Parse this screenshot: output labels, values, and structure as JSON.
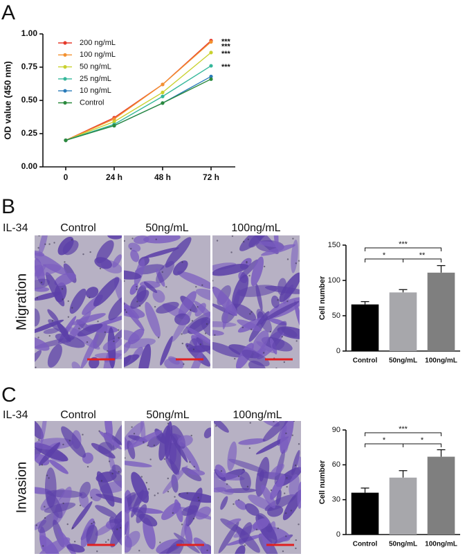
{
  "panels": [
    {
      "label": "A"
    },
    {
      "label": "B",
      "treatment": "IL-34",
      "row_label": "Migration",
      "columns": [
        "Control",
        "50ng/mL",
        "100ng/mL"
      ]
    },
    {
      "label": "C",
      "treatment": "IL-34",
      "row_label": "Invasion",
      "columns": [
        "Control",
        "50ng/mL",
        "100ng/mL"
      ]
    }
  ],
  "chart_data": [
    {
      "type": "line",
      "ylabel": "OD value (450 nm)",
      "categories": [
        "0",
        "24 h",
        "48 h",
        "72 h"
      ],
      "ylim": [
        0,
        1
      ],
      "yticks": [
        {
          "value": 0,
          "label": "0.00"
        },
        0.25,
        {
          "value": 0.5,
          "label": "0.50"
        },
        0.75,
        {
          "value": 1,
          "label": "1.00"
        }
      ],
      "series": [
        {
          "name": "200 ng/mL",
          "color": "#e53a2b",
          "values": [
            0.2,
            0.37,
            0.62,
            0.95
          ],
          "annotation": "***"
        },
        {
          "name": "100 ng/mL",
          "color": "#f39130",
          "values": [
            0.2,
            0.36,
            0.62,
            0.94
          ],
          "annotation": "***"
        },
        {
          "name": "50 ng/mL",
          "color": "#c9d12e",
          "values": [
            0.2,
            0.34,
            0.56,
            0.86
          ],
          "annotation": "***"
        },
        {
          "name": "25 ng/mL",
          "color": "#35b79a",
          "values": [
            0.2,
            0.32,
            0.53,
            0.76
          ],
          "annotation": "***"
        },
        {
          "name": "10 ng/mL",
          "color": "#2a7bb9",
          "values": [
            0.2,
            0.31,
            0.48,
            0.68
          ]
        },
        {
          "name": "Control",
          "color": "#2b8a3e",
          "values": [
            0.2,
            0.31,
            0.48,
            0.66
          ]
        }
      ]
    },
    {
      "type": "bar",
      "ylabel": "Cell number",
      "categories": [
        "Control",
        "50ng/mL",
        "100ng/mL"
      ],
      "values": [
        66,
        83,
        111
      ],
      "errors": [
        4,
        4,
        10
      ],
      "colors": [
        "#000000",
        "#a7a7ab",
        "#7f7f7f"
      ],
      "ylim": [
        0,
        150
      ],
      "yticks": [
        0,
        50,
        100,
        150
      ],
      "comparisons": [
        {
          "groups": [
            "Control",
            "100ng/mL"
          ],
          "label": "***"
        },
        {
          "groups": [
            "Control",
            "50ng/mL"
          ],
          "label": "*"
        },
        {
          "groups": [
            "50ng/mL",
            "100ng/mL"
          ],
          "label": "**"
        }
      ]
    },
    {
      "type": "bar",
      "ylabel": "Cell number",
      "categories": [
        "Control",
        "50ng/mL",
        "100ng/mL"
      ],
      "values": [
        36,
        49,
        67
      ],
      "errors": [
        4,
        6,
        6
      ],
      "colors": [
        "#000000",
        "#a7a7ab",
        "#7f7f7f"
      ],
      "ylim": [
        0,
        90
      ],
      "yticks": [
        0,
        30,
        60,
        90
      ],
      "comparisons": [
        {
          "groups": [
            "Control",
            "100ng/mL"
          ],
          "label": "***"
        },
        {
          "groups": [
            "Control",
            "50ng/mL"
          ],
          "label": "*"
        },
        {
          "groups": [
            "50ng/mL",
            "100ng/mL"
          ],
          "label": "*"
        }
      ]
    }
  ]
}
